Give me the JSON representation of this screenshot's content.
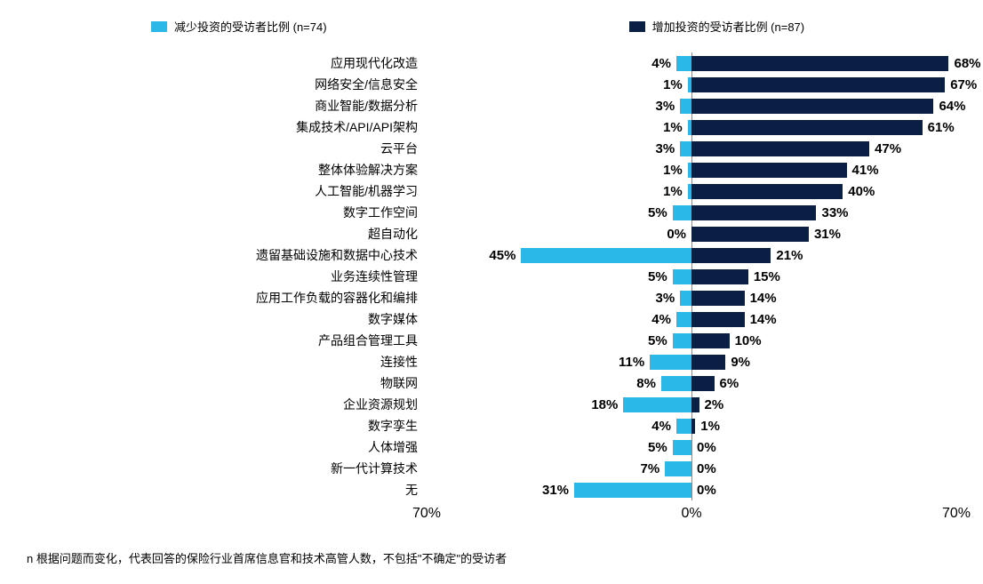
{
  "chart": {
    "type": "diverging-bar",
    "legend": {
      "decrease": {
        "label": "减少投资的受访者比例 (n=74)",
        "color": "#29b8e8"
      },
      "increase": {
        "label": "增加投资的受访者比例 (n=87)",
        "color": "#0b1f44"
      }
    },
    "axis": {
      "max": 70,
      "ticks": [
        {
          "pos": -70,
          "label": "70%"
        },
        {
          "pos": 0,
          "label": "0%"
        },
        {
          "pos": 70,
          "label": "70%"
        }
      ],
      "axis_color": "#888888"
    },
    "label_fontsize": 14,
    "value_fontsize": 15,
    "value_fontweight": "bold",
    "background_color": "#ffffff",
    "rows": [
      {
        "label": "应用现代化改造",
        "dec": 4,
        "inc": 68
      },
      {
        "label": "网络安全/信息安全",
        "dec": 1,
        "inc": 67
      },
      {
        "label": "商业智能/数据分析",
        "dec": 3,
        "inc": 64
      },
      {
        "label": "集成技术/API/API架构",
        "dec": 1,
        "inc": 61
      },
      {
        "label": "云平台",
        "dec": 3,
        "inc": 47
      },
      {
        "label": "整体体验解决方案",
        "dec": 1,
        "inc": 41
      },
      {
        "label": "人工智能/机器学习",
        "dec": 1,
        "inc": 40
      },
      {
        "label": "数字工作空间",
        "dec": 5,
        "inc": 33
      },
      {
        "label": "超自动化",
        "dec": 0,
        "inc": 31
      },
      {
        "label": "遗留基础设施和数据中心技术",
        "dec": 45,
        "inc": 21
      },
      {
        "label": "业务连续性管理",
        "dec": 5,
        "inc": 15
      },
      {
        "label": "应用工作负载的容器化和编排",
        "dec": 3,
        "inc": 14
      },
      {
        "label": "数字媒体",
        "dec": 4,
        "inc": 14
      },
      {
        "label": "产品组合管理工具",
        "dec": 5,
        "inc": 10
      },
      {
        "label": "连接性",
        "dec": 11,
        "inc": 9
      },
      {
        "label": "物联网",
        "dec": 8,
        "inc": 6
      },
      {
        "label": "企业资源规划",
        "dec": 18,
        "inc": 2
      },
      {
        "label": "数字孪生",
        "dec": 4,
        "inc": 1
      },
      {
        "label": "人体增强",
        "dec": 5,
        "inc": 0
      },
      {
        "label": "新一代计算技术",
        "dec": 7,
        "inc": 0
      },
      {
        "label": "无",
        "dec": 31,
        "inc": 0
      }
    ],
    "footnote": "n  根据问题而变化，代表回答的保险行业首席信息官和技术高管人数，不包括\"不确定\"的受访者"
  }
}
